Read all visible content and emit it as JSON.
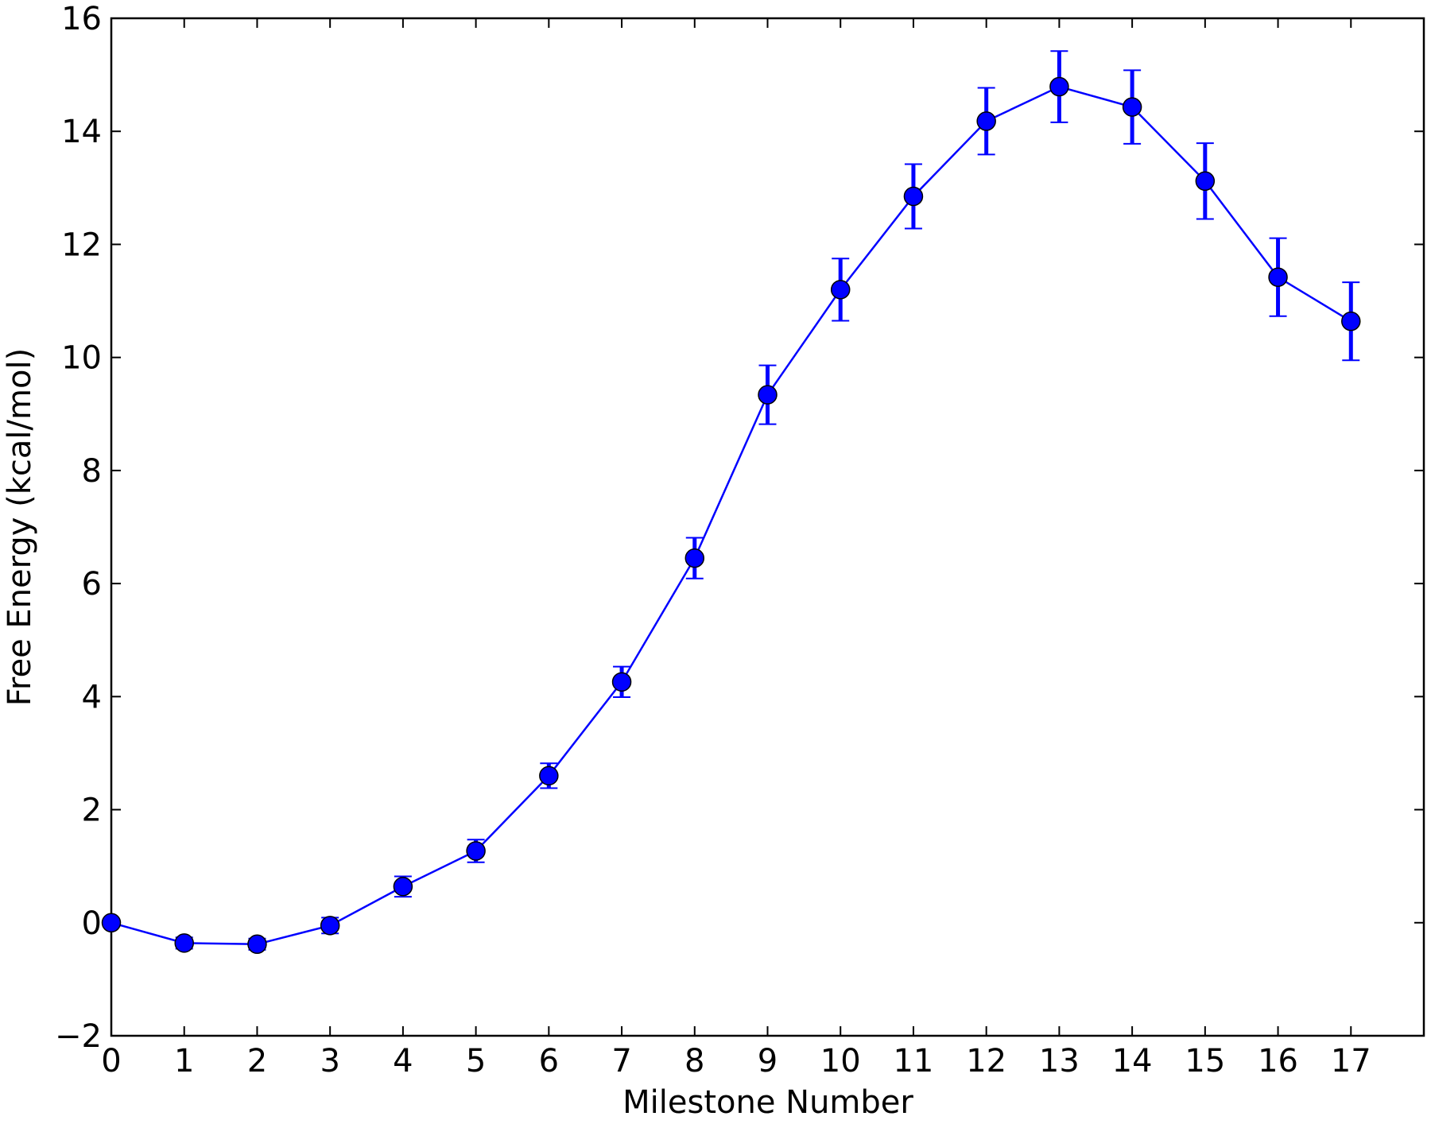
{
  "chart_data": {
    "type": "errorline",
    "x_label": "Milestone Number",
    "y_label": "Free Energy (kcal/mol)",
    "x": [
      0,
      1,
      2,
      3,
      4,
      5,
      6,
      7,
      8,
      9,
      10,
      11,
      12,
      13,
      14,
      15,
      16,
      17
    ],
    "series": [
      {
        "color": "#0000ff",
        "values": [
          0,
          -0.36,
          -0.38,
          -0.05,
          0.64,
          1.27,
          2.6,
          4.26,
          6.45,
          9.34,
          11.2,
          12.85,
          14.18,
          14.79,
          14.43,
          13.12,
          11.42,
          10.64
        ],
        "errors": [
          0,
          0.1,
          0.1,
          0.14,
          0.18,
          0.2,
          0.22,
          0.27,
          0.36,
          0.52,
          0.55,
          0.57,
          0.59,
          0.63,
          0.65,
          0.67,
          0.69,
          0.69
        ]
      }
    ],
    "xlim": [
      0,
      18
    ],
    "xticks": [
      0,
      1,
      2,
      3,
      4,
      5,
      6,
      7,
      8,
      9,
      10,
      11,
      12,
      13,
      14,
      15,
      16,
      17
    ],
    "ylim": [
      -2,
      16
    ],
    "yticks": [
      {
        "value": -2,
        "label": "−2"
      },
      0,
      2,
      4,
      6,
      8,
      10,
      12,
      14,
      16
    ],
    "grid": false
  }
}
